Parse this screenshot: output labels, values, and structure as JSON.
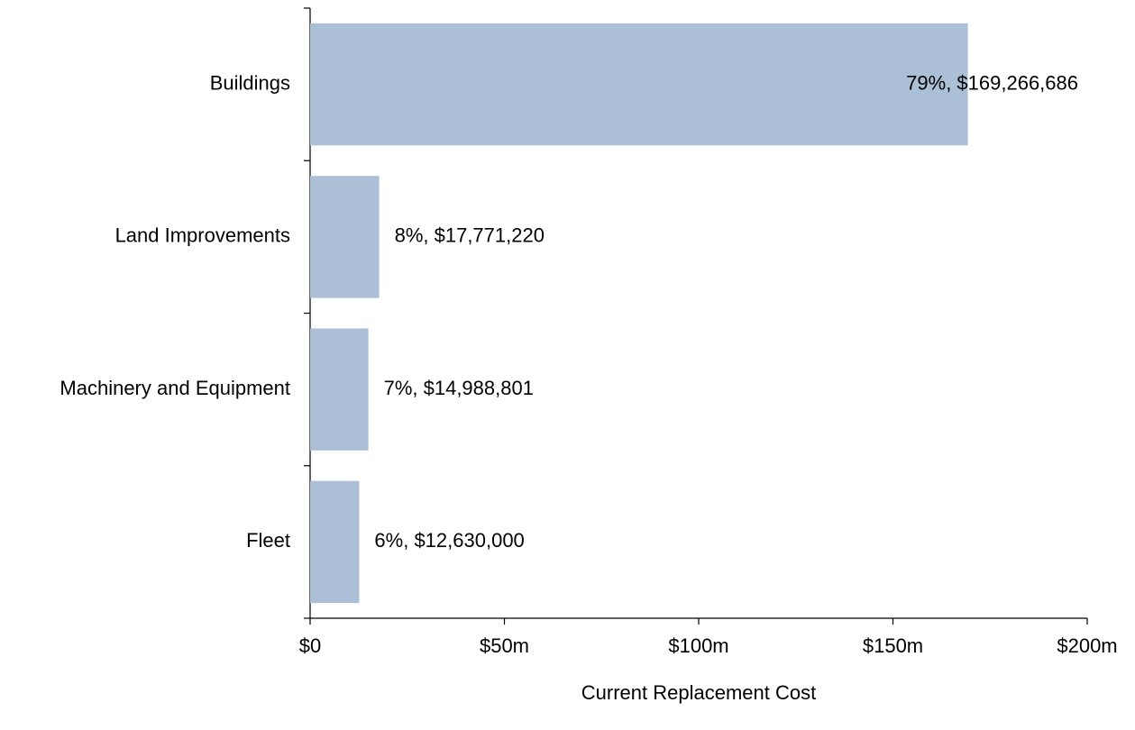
{
  "chart_data": {
    "type": "bar",
    "orientation": "horizontal",
    "xlabel": "Current Replacement Cost",
    "categories": [
      "Buildings",
      "Land Improvements",
      "Machinery and Equipment",
      "Fleet"
    ],
    "values": [
      169266686,
      17771220,
      14988801,
      12630000
    ],
    "value_labels": [
      "79%, $169,266,686",
      "8%, $17,771,220",
      "7%, $14,988,801",
      "6%, $12,630,000"
    ],
    "color": "#abbfd6",
    "xlim": [
      0,
      200000000
    ],
    "xticks": [
      {
        "value": 0,
        "label": "$0"
      },
      {
        "value": 50000000,
        "label": "$50m"
      },
      {
        "value": 100000000,
        "label": "$100m"
      },
      {
        "value": 150000000,
        "label": "$150m"
      },
      {
        "value": 200000000,
        "label": "$200m"
      }
    ],
    "grid": false
  }
}
